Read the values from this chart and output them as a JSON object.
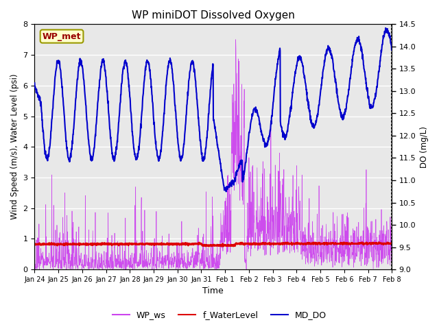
{
  "title": "WP miniDOT Dissolved Oxygen",
  "ylabel_left": "Wind Speed (m/s), Water Level (psi)",
  "ylabel_right": "DO (mg/L)",
  "xlabel": "Time",
  "ylim_left": [
    0.0,
    8.0
  ],
  "ylim_right": [
    9.0,
    14.5
  ],
  "yticks_left": [
    0.0,
    1.0,
    2.0,
    3.0,
    4.0,
    5.0,
    6.0,
    7.0,
    8.0
  ],
  "yticks_right": [
    9.0,
    9.5,
    10.0,
    10.5,
    11.0,
    11.5,
    12.0,
    12.5,
    13.0,
    13.5,
    14.0,
    14.5
  ],
  "xtick_labels": [
    "Jan 24",
    "Jan 25",
    "Jan 26",
    "Jan 27",
    "Jan 28",
    "Jan 29",
    "Jan 30",
    "Jan 31",
    "Feb 1",
    "Feb 2",
    "Feb 3",
    "Feb 4",
    "Feb 5",
    "Feb 6",
    "Feb 7",
    "Feb 8"
  ],
  "color_ws": "#CC44EE",
  "color_wl": "#DD0000",
  "color_do": "#0000CC",
  "legend_label": "WP_met",
  "legend_facecolor": "#FFFFCC",
  "legend_edgecolor": "#999900",
  "legend_textcolor": "#990000",
  "bg_color": "#E8E8E8",
  "line_legend_labels": [
    "WP_ws",
    "f_WaterLevel",
    "MD_DO"
  ],
  "n_days": 16
}
